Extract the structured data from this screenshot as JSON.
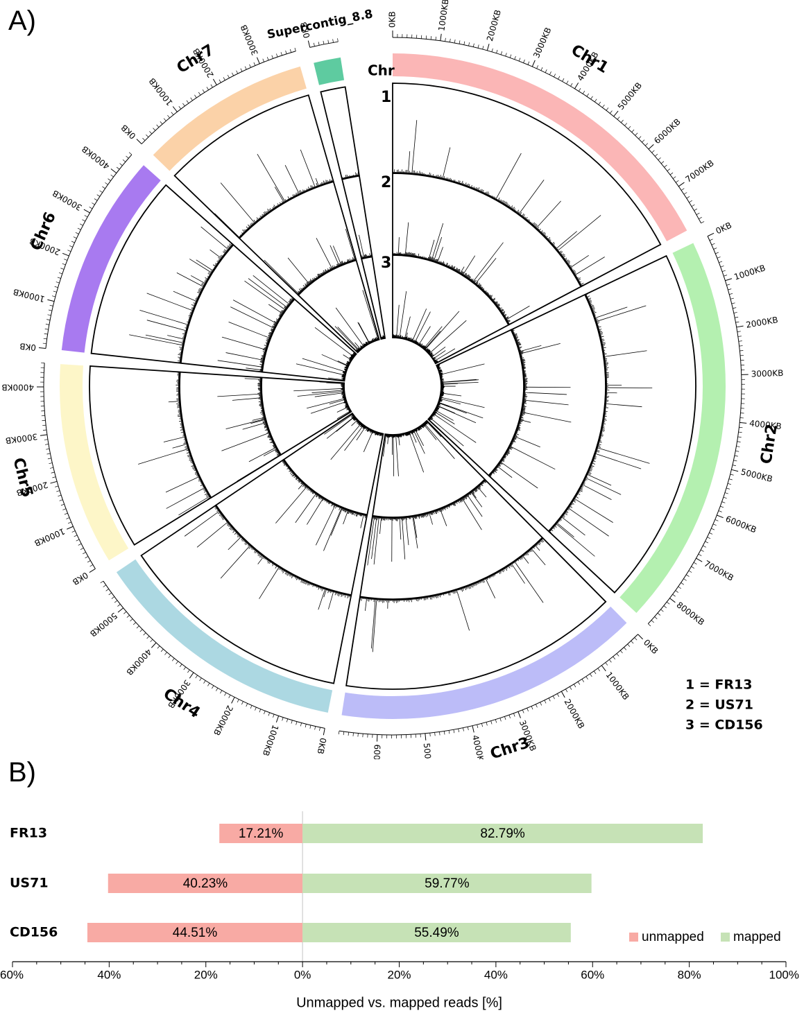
{
  "panel_a_label": "A)",
  "panel_b_label": "B)",
  "chart_data": [
    {
      "type": "circos",
      "chromosomes": [
        {
          "name": "Chr1",
          "length_kb": 7900,
          "color": "#fbb6b6",
          "ticks_kb": [
            0,
            1000,
            2000,
            3000,
            4000,
            5000,
            6000,
            7000
          ]
        },
        {
          "name": "Chr2",
          "length_kb": 8700,
          "color": "#b4f0b0",
          "ticks_kb": [
            0,
            1000,
            2000,
            3000,
            4000,
            5000,
            6000,
            7000,
            8000
          ]
        },
        {
          "name": "Chr3",
          "length_kb": 6800,
          "color": "#bcbcf8",
          "ticks_kb": [
            0,
            1000,
            2000,
            3000,
            4000,
            5000,
            6000
          ]
        },
        {
          "name": "Chr4",
          "length_kb": 5700,
          "color": "#acd8e2",
          "ticks_kb": [
            0,
            1000,
            2000,
            3000,
            4000,
            5000
          ]
        },
        {
          "name": "Chr5",
          "length_kb": 4500,
          "color": "#fdf6c8",
          "ticks_kb": [
            0,
            1000,
            2000,
            3000,
            4000
          ]
        },
        {
          "name": "Chr6",
          "length_kb": 4500,
          "color": "#a87af0",
          "ticks_kb": [
            0,
            1000,
            2000,
            3000,
            4000
          ]
        },
        {
          "name": "Chr7",
          "length_kb": 3800,
          "color": "#fbd2a8",
          "ticks_kb": [
            0,
            1000,
            2000,
            3000
          ]
        },
        {
          "name": "Supercontig_8.8",
          "length_kb": 600,
          "color": "#5ecba0",
          "ticks_kb": [
            0
          ]
        }
      ],
      "track_header": "Chr",
      "track_numbers": [
        "1",
        "2",
        "3"
      ],
      "key": [
        "1 = FR13",
        "2 = US71",
        "3 = CD156"
      ]
    },
    {
      "type": "bar",
      "orientation": "horizontal-diverging",
      "categories": [
        "FR13",
        "US71",
        "CD156"
      ],
      "series": [
        {
          "name": "unmapped",
          "color": "#f8aaa4",
          "values": [
            17.21,
            40.23,
            44.51
          ],
          "labels": [
            "17.21%",
            "40.23%",
            "44.51%"
          ]
        },
        {
          "name": "mapped",
          "color": "#c6e2b6",
          "values": [
            82.79,
            59.77,
            55.49
          ],
          "labels": [
            "82.79%",
            "59.77%",
            "55.49%"
          ]
        }
      ],
      "xlim": [
        -60,
        100
      ],
      "ticks": [
        -60,
        -40,
        -20,
        0,
        20,
        40,
        60,
        80,
        100
      ],
      "tick_labels": [
        "60%",
        "40%",
        "20%",
        "0%",
        "20%",
        "40%",
        "60%",
        "80%",
        "100%"
      ],
      "xlabel": "Unmapped vs. mapped reads [%]",
      "legend": "bottom-right"
    }
  ]
}
